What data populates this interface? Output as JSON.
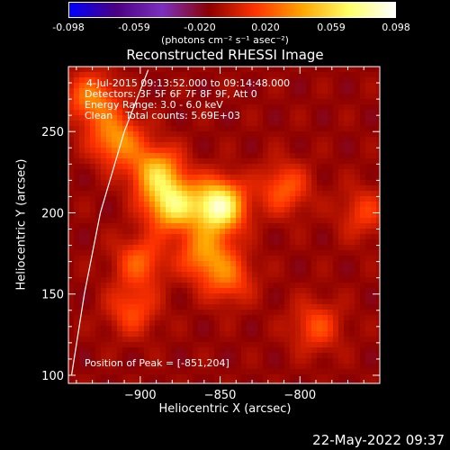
{
  "colorbar": {
    "ticks": [
      "-0.098",
      "-0.059",
      "-0.020",
      "0.020",
      "0.059",
      "0.098"
    ],
    "units": "(photons cm⁻² s⁻¹ asec⁻²)"
  },
  "chart_data": {
    "type": "heatmap",
    "title": "Reconstructed RHESSI Image",
    "xlabel": "Heliocentric X (arcsec)",
    "ylabel": "Heliocentric Y (arcsec)",
    "xlim": [
      -945,
      -750
    ],
    "ylim": [
      95,
      290
    ],
    "xticks": [
      -900,
      -850,
      -800
    ],
    "xtick_labels": [
      "−900",
      "−850",
      "−800"
    ],
    "yticks": [
      100,
      150,
      200,
      250
    ],
    "ytick_labels": [
      "100",
      "150",
      "200",
      "250"
    ],
    "colorscale": [
      "#0000ff",
      "#4b0082",
      "#7b2fbf",
      "#8b0000",
      "#ff3300",
      "#ffa500",
      "#ffff66",
      "#ffffff"
    ],
    "clim": [
      -0.098,
      0.098
    ],
    "peak": {
      "x": -851,
      "y": 204
    },
    "sources": [
      {
        "x": -851,
        "y": 204,
        "intensity": 0.098
      },
      {
        "x": -880,
        "y": 205,
        "intensity": 0.075
      },
      {
        "x": -890,
        "y": 225,
        "intensity": 0.06
      },
      {
        "x": -915,
        "y": 245,
        "intensity": 0.05
      },
      {
        "x": -930,
        "y": 270,
        "intensity": 0.045
      },
      {
        "x": -860,
        "y": 175,
        "intensity": 0.045
      },
      {
        "x": -845,
        "y": 160,
        "intensity": 0.035
      },
      {
        "x": -900,
        "y": 170,
        "intensity": 0.035
      },
      {
        "x": -905,
        "y": 140,
        "intensity": 0.03
      },
      {
        "x": -810,
        "y": 215,
        "intensity": 0.035
      },
      {
        "x": -790,
        "y": 130,
        "intensity": 0.03
      },
      {
        "x": -760,
        "y": 200,
        "intensity": 0.025
      }
    ],
    "limb_curve": [
      [
        -943,
        100
      ],
      [
        -935,
        150
      ],
      [
        -925,
        200
      ],
      [
        -910,
        250
      ],
      [
        -895,
        288
      ]
    ]
  },
  "info": {
    "time_range": "4-Jul-2015 09:13:52.000 to 09:14:48.000",
    "detectors": "Detectors: 3F 5F 6F 7F 8F 9F, Att 0",
    "energy": "Energy Range: 3.0 - 6.0 keV",
    "method": "Clean    Total counts: 5.69E+03",
    "peak_text": "Position of Peak = [-851,204]"
  },
  "timestamp": "22-May-2022 09:37"
}
